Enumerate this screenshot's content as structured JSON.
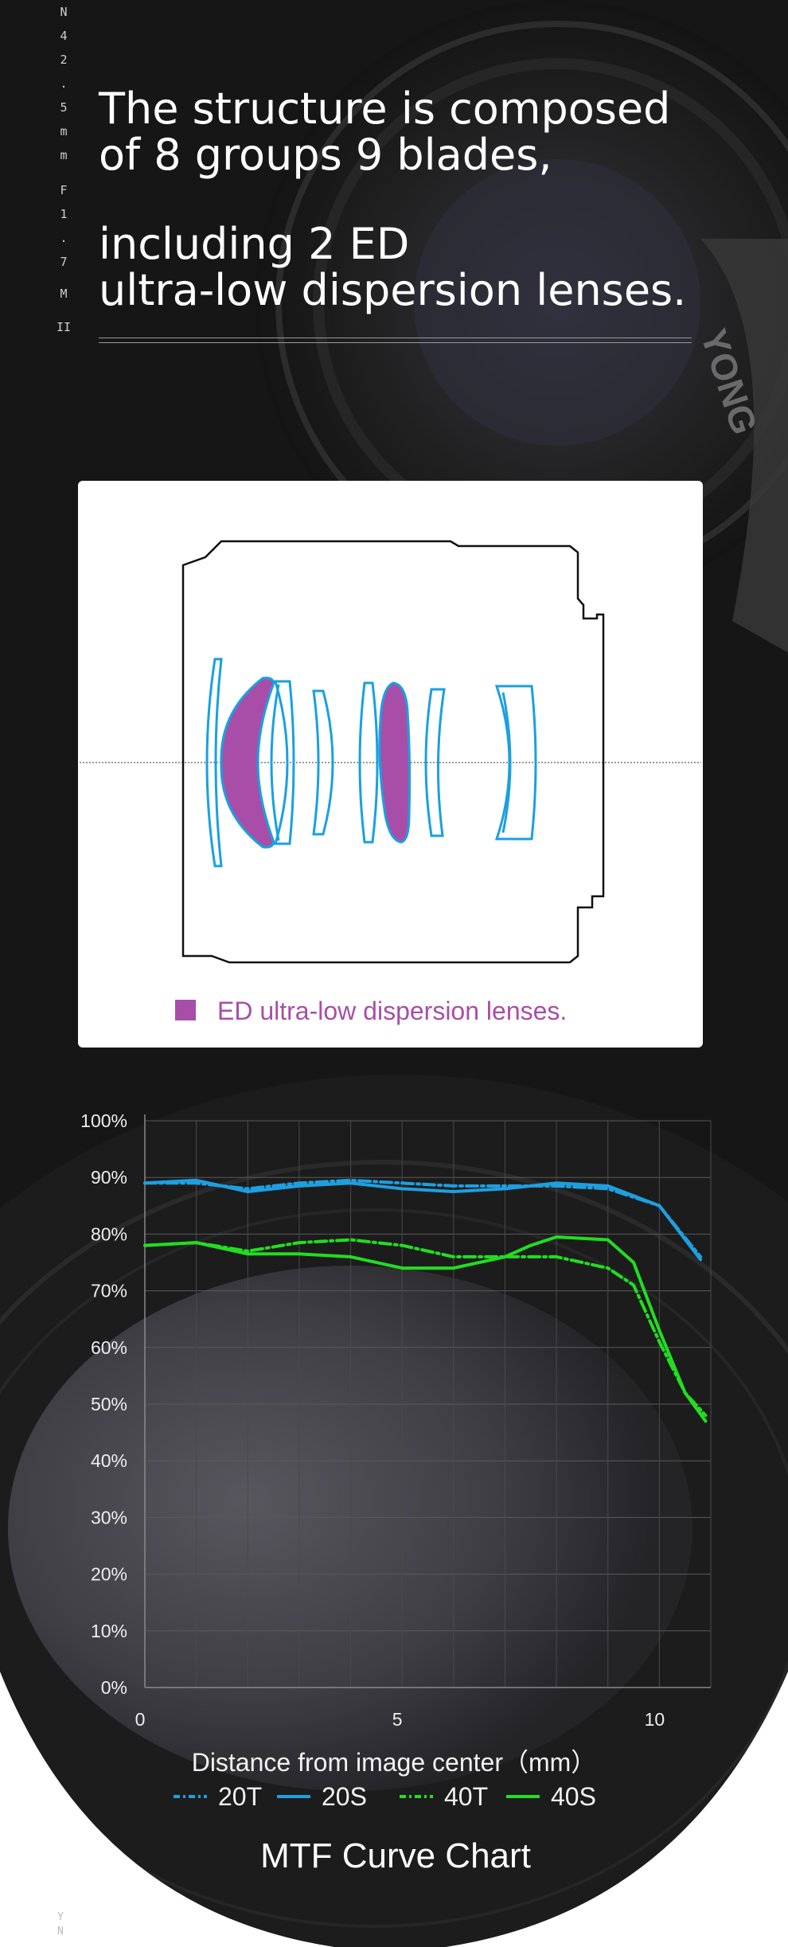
{
  "vertical_text": [
    "N",
    "4",
    "2",
    ".",
    "5",
    "m",
    "m",
    "F",
    "1",
    ".",
    "7",
    "M",
    "II"
  ],
  "vertical_text_bottom": [
    "Y",
    "N"
  ],
  "headline": {
    "line1": "The structure is composed",
    "line2": "of 8 groups 9 blades,",
    "line3": "including 2 ED",
    "line4": "ultra-low dispersion lenses."
  },
  "diagram": {
    "legend_label": "ED ultra-low dispersion lenses.",
    "ed_color": "#a84ea8",
    "lens_color": "#1aa0e0"
  },
  "chart_data": {
    "type": "line",
    "title": "MTF Curve Chart",
    "xlabel": "Distance from image center（mm）",
    "ylabel": "",
    "xlim": [
      0,
      11
    ],
    "ylim": [
      0,
      100
    ],
    "y_ticks": [
      "0%",
      "10%",
      "20%",
      "30%",
      "40%",
      "50%",
      "60%",
      "70%",
      "80%",
      "90%",
      "100%"
    ],
    "x_ticks": [
      {
        "value": 0,
        "label": "0"
      },
      {
        "value": 5,
        "label": "5"
      },
      {
        "value": 10,
        "label": "10"
      }
    ],
    "grid": true,
    "legend_position": "bottom",
    "series": [
      {
        "name": "20T",
        "color": "#1e9fe0",
        "dash": "dashdot",
        "x": [
          0,
          1,
          2,
          3,
          4,
          5,
          6,
          7,
          8,
          9,
          10,
          10.8
        ],
        "y": [
          89,
          89,
          88,
          89,
          89.5,
          89,
          88.5,
          88.5,
          88.5,
          88,
          85,
          76
        ]
      },
      {
        "name": "20S",
        "color": "#1e9fe0",
        "dash": "solid",
        "x": [
          0,
          1,
          2,
          3,
          4,
          5,
          6,
          7,
          8,
          9,
          10,
          10.8
        ],
        "y": [
          89,
          89.5,
          87.5,
          88.5,
          89,
          88,
          87.5,
          88,
          89,
          88.5,
          85,
          75.5
        ]
      },
      {
        "name": "40T",
        "color": "#22dd22",
        "dash": "dashdot",
        "x": [
          0,
          1,
          2,
          3,
          4,
          5,
          6,
          7,
          8,
          9,
          9.5,
          10,
          10.5,
          10.9
        ],
        "y": [
          78,
          78.5,
          77,
          78.5,
          79,
          78,
          76,
          76,
          76,
          74,
          71,
          61,
          52,
          48
        ]
      },
      {
        "name": "40S",
        "color": "#22dd22",
        "dash": "solid",
        "x": [
          0,
          1,
          2,
          3,
          4,
          5,
          6,
          7,
          7.5,
          8,
          9,
          9.5,
          10,
          10.5,
          10.9
        ],
        "y": [
          78,
          78.5,
          76.5,
          76.5,
          76,
          74,
          74,
          76,
          78,
          79.5,
          79,
          75,
          63,
          52,
          47
        ]
      }
    ]
  }
}
